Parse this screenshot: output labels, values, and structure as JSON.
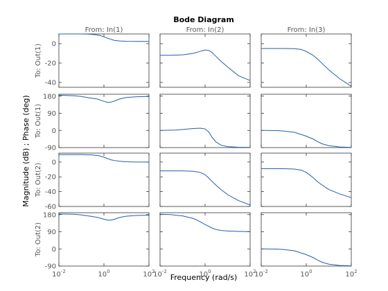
{
  "chart_data": {
    "type": "line",
    "title": "Bode Diagram",
    "xlabel": "Frequency  (rad/s)",
    "ylabel": "Magnitude (dB) ; Phase (deg)",
    "x_scale": "log",
    "xlim": [
      0.01,
      100
    ],
    "x_ticks": [
      0.01,
      1,
      100
    ],
    "x_tick_labels": [
      {
        "base": "10",
        "exp": "-2"
      },
      {
        "base": "10",
        "exp": "0"
      },
      {
        "base": "10",
        "exp": "2"
      }
    ],
    "columns": [
      "From: In(1)",
      "From: In(2)",
      "From: In(3)"
    ],
    "row_labels": [
      "To: Out(1)",
      "To: Out(1)",
      "To: Out(2)",
      "To: Out(2)"
    ],
    "grid": false,
    "line_color": "#1f5fa8",
    "rows": [
      {
        "quantity": "magnitude",
        "ylim": [
          -45,
          10
        ],
        "yticks": [
          0,
          -20,
          -40
        ],
        "ytick_labels": [
          "0",
          "-20",
          "-40"
        ],
        "panels": [
          {
            "x": [
              0.01,
              0.05,
              0.1,
              0.2,
              0.4,
              0.7,
              1,
              1.5,
              2,
              3,
              5,
              10,
              30,
              100
            ],
            "y": [
              10,
              10,
              10,
              9.8,
              9.3,
              8.3,
              7,
              5.5,
              4.5,
              3.3,
              2.8,
              2.4,
              2.3,
              2.3
            ]
          },
          {
            "x": [
              0.01,
              0.03,
              0.1,
              0.3,
              0.6,
              1,
              1.5,
              2,
              3,
              5,
              10,
              30,
              100
            ],
            "y": [
              -12,
              -12,
              -11.5,
              -10,
              -8,
              -6.5,
              -7,
              -9,
              -13,
              -18,
              -24,
              -33,
              -38
            ]
          },
          {
            "x": [
              0.01,
              0.1,
              0.3,
              0.6,
              1,
              2,
              4,
              10,
              30,
              100
            ],
            "y": [
              -5,
              -5,
              -5.2,
              -6,
              -8,
              -12,
              -18,
              -27,
              -36,
              -44
            ]
          }
        ]
      },
      {
        "quantity": "phase",
        "ylim": [
          -90,
          190
        ],
        "yticks": [
          180,
          90,
          0,
          -90
        ],
        "ytick_labels": [
          "180",
          "90",
          "0",
          "-90"
        ],
        "panels": [
          {
            "x": [
              0.01,
              0.05,
              0.1,
              0.2,
              0.5,
              1,
              1.5,
              2,
              3,
              5,
              10,
              30,
              100
            ],
            "y": [
              185,
              182,
              178,
              172,
              165,
              153,
              147,
              148,
              155,
              165,
              173,
              177,
              178
            ]
          },
          {
            "x": [
              0.01,
              0.05,
              0.1,
              0.3,
              0.6,
              1,
              1.5,
              2,
              3,
              5,
              10,
              30,
              100
            ],
            "y": [
              0,
              2,
              5,
              10,
              12,
              8,
              -10,
              -35,
              -60,
              -77,
              -85,
              -88,
              -89
            ]
          },
          {
            "x": [
              0.01,
              0.05,
              0.1,
              0.3,
              1,
              2,
              3,
              5,
              10,
              30,
              100
            ],
            "y": [
              0,
              -1,
              -3,
              -10,
              -30,
              -45,
              -57,
              -70,
              -80,
              -87,
              -89
            ]
          }
        ]
      },
      {
        "quantity": "magnitude",
        "ylim": [
          -60,
          12
        ],
        "yticks": [
          0,
          -20,
          -40,
          -60
        ],
        "ytick_labels": [
          "0",
          "-20",
          "-40",
          "-60"
        ],
        "panels": [
          {
            "x": [
              0.01,
              0.1,
              0.3,
              0.6,
              1,
              1.5,
              2,
              3,
              5,
              10,
              30,
              100
            ],
            "y": [
              10,
              10,
              9.5,
              8.5,
              6.5,
              4.5,
              3,
              2,
              1,
              0.3,
              0,
              0
            ]
          },
          {
            "x": [
              0.01,
              0.1,
              0.3,
              0.6,
              1,
              1.5,
              2,
              3,
              5,
              10,
              30,
              100
            ],
            "y": [
              -12,
              -12,
              -12.5,
              -14,
              -17,
              -22,
              -26,
              -31,
              -37,
              -44,
              -52,
              -58
            ]
          },
          {
            "x": [
              0.01,
              0.1,
              0.3,
              0.6,
              1,
              1.5,
              2,
              3,
              5,
              10,
              30,
              100
            ],
            "y": [
              -9,
              -9,
              -9.5,
              -11,
              -14,
              -18,
              -21,
              -26,
              -31,
              -37,
              -43,
              -48
            ]
          }
        ]
      },
      {
        "quantity": "phase",
        "ylim": [
          -90,
          190
        ],
        "yticks": [
          180,
          90,
          0,
          -90
        ],
        "ytick_labels": [
          "180",
          "90",
          "0",
          "-90"
        ],
        "panels": [
          {
            "x": [
              0.01,
              0.05,
              0.1,
              0.2,
              0.5,
              1,
              1.5,
              2,
              3,
              5,
              10,
              30,
              100
            ],
            "y": [
              183,
              182,
              178,
              173,
              166,
              156,
              151,
              151,
              156,
              165,
              172,
              176,
              177
            ]
          },
          {
            "x": [
              0.01,
              0.03,
              0.1,
              0.3,
              0.6,
              1,
              2,
              3,
              5,
              10,
              30,
              100
            ],
            "y": [
              182,
              180,
              173,
              160,
              143,
              128,
              110,
              102,
              97,
              94,
              92,
              91
            ]
          },
          {
            "x": [
              0.01,
              0.05,
              0.1,
              0.3,
              1,
              2,
              3,
              5,
              10,
              30,
              100
            ],
            "y": [
              0,
              -1,
              -3,
              -10,
              -30,
              -45,
              -57,
              -70,
              -80,
              -87,
              -89
            ]
          }
        ]
      }
    ]
  }
}
